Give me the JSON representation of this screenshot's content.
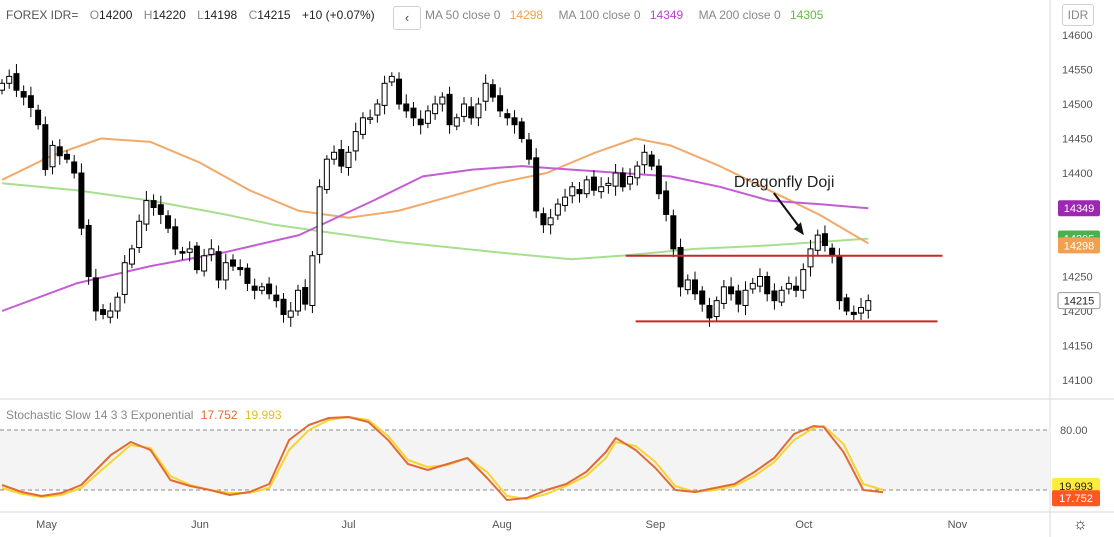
{
  "header": {
    "symbol": "FOREX IDR=",
    "open_key": "O",
    "open": "14200",
    "high_key": "H",
    "high": "14220",
    "low_key": "L",
    "low": "14198",
    "close_key": "C",
    "close": "14215",
    "change": "+10 (+0.07%)",
    "collapse_icon": "chevron-left-icon",
    "collapse_glyph": "‹"
  },
  "ma_header": {
    "ma50_label": "MA 50 close 0",
    "ma50_value": "14298",
    "ma100_label": "MA 100 close 0",
    "ma100_value": "14349",
    "ma200_label": "MA 200 close 0",
    "ma200_value": "14305"
  },
  "currency_button": "IDR",
  "settings_icon": "gear-icon",
  "settings_glyph": "☼",
  "indicator_header": {
    "label": "Stochastic Slow 14 3 3 Exponential",
    "k_value": "17.752",
    "d_value": "19.993"
  },
  "colors": {
    "up": "#ffffff",
    "down": "#000000",
    "wick": "#000000",
    "ma50": "#f2a96a",
    "ma100": "#c45cd6",
    "ma200": "#a6e08f",
    "stoch_k": "#e26a35",
    "stoch_d": "#f5d532",
    "support_resistance": "#c62828",
    "badge_ma100": "#9c27b0",
    "badge_ma200": "#4caf50",
    "badge_ma50": "#f0a050",
    "badge_close": "#ffffff",
    "badge_stoch_d": "#ffeb3b",
    "badge_stoch_k": "#ff5722"
  },
  "chart_data": {
    "type": "candlestick",
    "title": "",
    "xlabel": "",
    "ylabel": "",
    "ylim": [
      14080,
      14620
    ],
    "y_ticks": [
      "14600",
      "14550",
      "14500",
      "14450",
      "14400",
      "14350",
      "14300",
      "14250",
      "14200",
      "14150",
      "14100"
    ],
    "x_ticks": [
      {
        "label": "May",
        "day": 9
      },
      {
        "label": "Jun",
        "day": 40
      },
      {
        "label": "Jul",
        "day": 70
      },
      {
        "label": "Aug",
        "day": 101
      },
      {
        "label": "Sep",
        "day": 132
      },
      {
        "label": "Oct",
        "day": 162
      },
      {
        "label": "Nov",
        "day": 193
      }
    ],
    "grid": false,
    "candles_day_range": [
      0,
      175
    ],
    "closes": [
      14530,
      14540,
      14520,
      14510,
      14495,
      14470,
      14405,
      14440,
      14425,
      14420,
      14400,
      14320,
      14250,
      14200,
      14195,
      14200,
      14220,
      14270,
      14290,
      14330,
      14360,
      14350,
      14340,
      14320,
      14290,
      14285,
      14290,
      14260,
      14280,
      14290,
      14245,
      14270,
      14265,
      14260,
      14240,
      14230,
      14235,
      14225,
      14215,
      14195,
      14200,
      14230,
      14210,
      14280,
      14380,
      14420,
      14430,
      14410,
      14430,
      14460,
      14480,
      14480,
      14500,
      14530,
      14540,
      14500,
      14490,
      14480,
      14470,
      14490,
      14500,
      14510,
      14470,
      14480,
      14500,
      14480,
      14500,
      14530,
      14510,
      14490,
      14480,
      14470,
      14450,
      14420,
      14345,
      14325,
      14335,
      14355,
      14365,
      14380,
      14370,
      14390,
      14375,
      14380,
      14385,
      14400,
      14380,
      14395,
      14410,
      14430,
      14410,
      14370,
      14340,
      14290,
      14235,
      14245,
      14225,
      14210,
      14190,
      14215,
      14235,
      14225,
      14210,
      14230,
      14240,
      14250,
      14225,
      14215,
      14230,
      14240,
      14230,
      14260,
      14290,
      14310,
      14295,
      14280,
      14215,
      14200,
      14195,
      14205,
      14215
    ],
    "ma50": [
      [
        0,
        14390
      ],
      [
        10,
        14425
      ],
      [
        20,
        14450
      ],
      [
        30,
        14445
      ],
      [
        40,
        14415
      ],
      [
        50,
        14375
      ],
      [
        60,
        14345
      ],
      [
        70,
        14335
      ],
      [
        80,
        14345
      ],
      [
        90,
        14365
      ],
      [
        100,
        14385
      ],
      [
        110,
        14400
      ],
      [
        120,
        14430
      ],
      [
        128,
        14450
      ],
      [
        135,
        14440
      ],
      [
        145,
        14410
      ],
      [
        155,
        14375
      ],
      [
        165,
        14340
      ],
      [
        175,
        14298
      ]
    ],
    "ma100": [
      [
        0,
        14200
      ],
      [
        15,
        14240
      ],
      [
        30,
        14265
      ],
      [
        45,
        14285
      ],
      [
        60,
        14310
      ],
      [
        75,
        14360
      ],
      [
        85,
        14395
      ],
      [
        95,
        14405
      ],
      [
        105,
        14410
      ],
      [
        115,
        14405
      ],
      [
        125,
        14400
      ],
      [
        135,
        14395
      ],
      [
        145,
        14380
      ],
      [
        155,
        14360
      ],
      [
        165,
        14355
      ],
      [
        175,
        14349
      ]
    ],
    "ma200": [
      [
        0,
        14385
      ],
      [
        15,
        14375
      ],
      [
        30,
        14360
      ],
      [
        45,
        14340
      ],
      [
        55,
        14325
      ],
      [
        65,
        14315
      ],
      [
        80,
        14300
      ],
      [
        100,
        14285
      ],
      [
        115,
        14275
      ],
      [
        125,
        14280
      ],
      [
        140,
        14290
      ],
      [
        155,
        14295
      ],
      [
        165,
        14300
      ],
      [
        175,
        14305
      ]
    ],
    "resistance": {
      "value": 14280,
      "from_day": 126,
      "to_day": 190
    },
    "support": {
      "value": 14185,
      "from_day": 128,
      "to_day": 189
    },
    "annotation": {
      "text": "Dragonfly Doji",
      "target_day": 162,
      "target_value": 14310
    },
    "price_badges": [
      {
        "series": "MA 100",
        "value": 14349,
        "label": "14349"
      },
      {
        "series": "MA 200",
        "value": 14305,
        "label": "14305"
      },
      {
        "series": "MA 50",
        "value": 14298,
        "label": "14298"
      },
      {
        "series": "Close",
        "value": 14215,
        "label": "14215"
      }
    ],
    "stochastic": {
      "ylim": [
        0,
        100
      ],
      "levels": [
        80,
        20
      ],
      "level_label": "80.00",
      "k": [
        [
          0,
          25
        ],
        [
          4,
          18
        ],
        [
          8,
          14
        ],
        [
          12,
          17
        ],
        [
          16,
          25
        ],
        [
          22,
          55
        ],
        [
          26,
          68
        ],
        [
          30,
          60
        ],
        [
          34,
          30
        ],
        [
          38,
          24
        ],
        [
          42,
          20
        ],
        [
          46,
          15
        ],
        [
          50,
          18
        ],
        [
          54,
          26
        ],
        [
          58,
          70
        ],
        [
          62,
          85
        ],
        [
          66,
          92
        ],
        [
          70,
          93
        ],
        [
          74,
          88
        ],
        [
          78,
          70
        ],
        [
          82,
          46
        ],
        [
          86,
          40
        ],
        [
          90,
          46
        ],
        [
          94,
          52
        ],
        [
          98,
          32
        ],
        [
          102,
          10
        ],
        [
          106,
          12
        ],
        [
          110,
          20
        ],
        [
          114,
          26
        ],
        [
          118,
          38
        ],
        [
          122,
          58
        ],
        [
          124,
          72
        ],
        [
          128,
          60
        ],
        [
          132,
          42
        ],
        [
          136,
          20
        ],
        [
          140,
          18
        ],
        [
          144,
          22
        ],
        [
          148,
          26
        ],
        [
          152,
          38
        ],
        [
          156,
          52
        ],
        [
          160,
          76
        ],
        [
          164,
          84
        ],
        [
          166,
          83
        ],
        [
          170,
          58
        ],
        [
          174,
          20
        ],
        [
          178,
          17.752
        ]
      ],
      "d": [
        [
          0,
          22
        ],
        [
          4,
          16
        ],
        [
          8,
          13
        ],
        [
          12,
          15
        ],
        [
          16,
          22
        ],
        [
          22,
          48
        ],
        [
          26,
          65
        ],
        [
          30,
          62
        ],
        [
          34,
          34
        ],
        [
          38,
          25
        ],
        [
          42,
          20
        ],
        [
          46,
          17
        ],
        [
          50,
          17
        ],
        [
          54,
          22
        ],
        [
          58,
          60
        ],
        [
          62,
          80
        ],
        [
          66,
          90
        ],
        [
          70,
          93
        ],
        [
          74,
          90
        ],
        [
          78,
          74
        ],
        [
          82,
          50
        ],
        [
          86,
          43
        ],
        [
          90,
          45
        ],
        [
          94,
          52
        ],
        [
          98,
          38
        ],
        [
          102,
          14
        ],
        [
          106,
          11
        ],
        [
          110,
          16
        ],
        [
          114,
          24
        ],
        [
          118,
          34
        ],
        [
          122,
          52
        ],
        [
          124,
          68
        ],
        [
          128,
          64
        ],
        [
          132,
          48
        ],
        [
          136,
          24
        ],
        [
          140,
          18
        ],
        [
          144,
          20
        ],
        [
          148,
          24
        ],
        [
          152,
          34
        ],
        [
          156,
          48
        ],
        [
          160,
          70
        ],
        [
          164,
          82
        ],
        [
          166,
          84
        ],
        [
          170,
          66
        ],
        [
          174,
          26
        ],
        [
          178,
          19.993
        ]
      ]
    }
  }
}
